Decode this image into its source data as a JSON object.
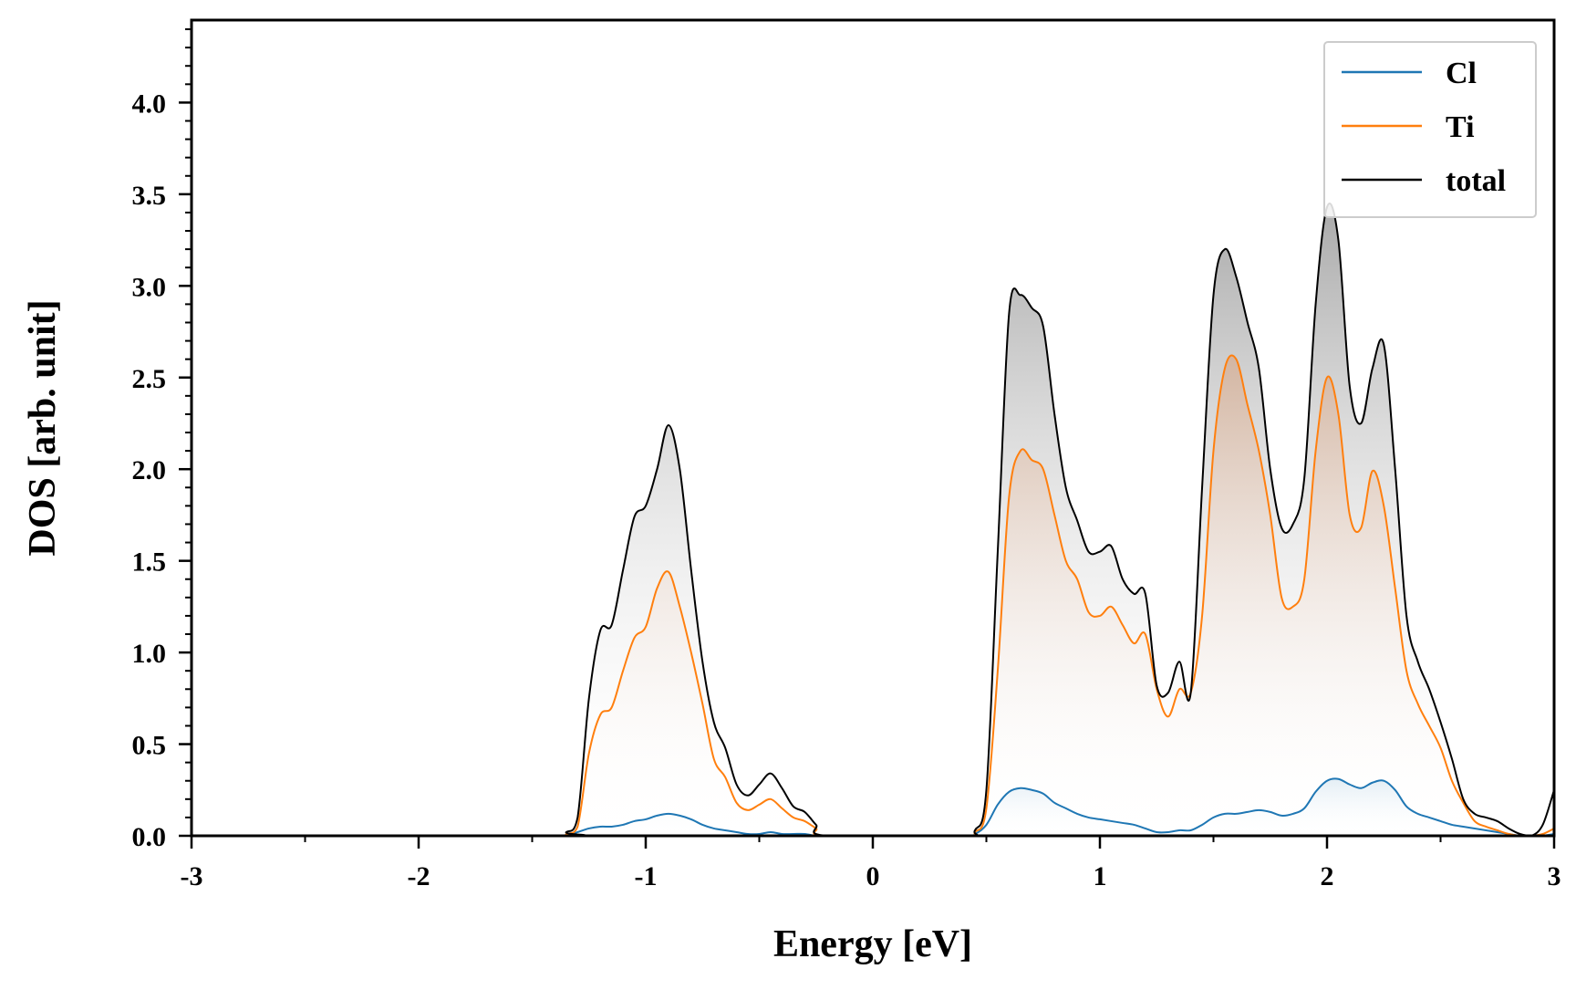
{
  "chart_data": {
    "type": "area",
    "title": "",
    "xlabel": "Energy [eV]",
    "ylabel": "DOS [arb. unit]",
    "xlim": [
      -3,
      3
    ],
    "ylim": [
      0,
      4.45
    ],
    "xticks": [
      -3,
      -2,
      -1,
      0,
      1,
      2,
      3
    ],
    "xtick_labels": [
      "-3",
      "-2",
      "-1",
      "0",
      "1",
      "2",
      "3"
    ],
    "yticks": [
      0,
      0.5,
      1.0,
      1.5,
      2.0,
      2.5,
      3.0,
      3.5,
      4.0
    ],
    "ytick_labels": [
      "0.0",
      "0.5",
      "1.0",
      "1.5",
      "2.0",
      "2.5",
      "3.0",
      "3.5",
      "4.0"
    ],
    "grid": false,
    "legend_position": "top-right",
    "x": [
      -3.0,
      -1.4,
      -1.35,
      -1.3,
      -1.25,
      -1.2,
      -1.15,
      -1.1,
      -1.05,
      -1.0,
      -0.95,
      -0.9,
      -0.85,
      -0.8,
      -0.75,
      -0.7,
      -0.65,
      -0.6,
      -0.55,
      -0.5,
      -0.45,
      -0.4,
      -0.35,
      -0.3,
      -0.25,
      -0.2,
      0.4,
      0.45,
      0.5,
      0.55,
      0.6,
      0.65,
      0.7,
      0.75,
      0.8,
      0.85,
      0.9,
      0.95,
      1.0,
      1.05,
      1.1,
      1.15,
      1.2,
      1.25,
      1.3,
      1.35,
      1.4,
      1.45,
      1.5,
      1.55,
      1.6,
      1.65,
      1.7,
      1.75,
      1.8,
      1.85,
      1.9,
      1.95,
      2.0,
      2.05,
      2.1,
      2.15,
      2.2,
      2.25,
      2.3,
      2.35,
      2.4,
      2.45,
      2.5,
      2.55,
      2.6,
      2.65,
      2.7,
      2.75,
      2.8,
      2.85,
      2.9,
      2.95,
      3.0
    ],
    "series": [
      {
        "name": "Cl",
        "color": "#1f77b4",
        "values": [
          0.0,
          0.0,
          0.0,
          0.02,
          0.04,
          0.05,
          0.05,
          0.06,
          0.08,
          0.09,
          0.11,
          0.12,
          0.11,
          0.09,
          0.06,
          0.04,
          0.03,
          0.02,
          0.01,
          0.01,
          0.02,
          0.01,
          0.01,
          0.01,
          0.0,
          0.0,
          0.0,
          0.01,
          0.06,
          0.17,
          0.24,
          0.26,
          0.25,
          0.23,
          0.18,
          0.15,
          0.12,
          0.1,
          0.09,
          0.08,
          0.07,
          0.06,
          0.04,
          0.02,
          0.02,
          0.03,
          0.03,
          0.06,
          0.1,
          0.12,
          0.12,
          0.13,
          0.14,
          0.13,
          0.11,
          0.12,
          0.15,
          0.24,
          0.3,
          0.31,
          0.28,
          0.26,
          0.29,
          0.3,
          0.25,
          0.16,
          0.12,
          0.1,
          0.08,
          0.06,
          0.05,
          0.04,
          0.03,
          0.02,
          0.01,
          0.0,
          0.0,
          0.0,
          0.01
        ]
      },
      {
        "name": "Ti",
        "color": "#ff7f0e",
        "values": [
          0.0,
          0.0,
          0.01,
          0.05,
          0.45,
          0.66,
          0.7,
          0.9,
          1.08,
          1.14,
          1.35,
          1.44,
          1.25,
          1.0,
          0.72,
          0.42,
          0.32,
          0.18,
          0.14,
          0.17,
          0.2,
          0.15,
          0.1,
          0.08,
          0.04,
          0.0,
          0.0,
          0.02,
          0.15,
          0.9,
          1.85,
          2.1,
          2.05,
          2.0,
          1.75,
          1.5,
          1.4,
          1.22,
          1.2,
          1.25,
          1.15,
          1.05,
          1.1,
          0.8,
          0.65,
          0.8,
          0.78,
          1.2,
          2.1,
          2.55,
          2.6,
          2.35,
          2.1,
          1.75,
          1.3,
          1.25,
          1.4,
          2.1,
          2.5,
          2.3,
          1.75,
          1.68,
          1.99,
          1.8,
          1.35,
          0.9,
          0.72,
          0.6,
          0.48,
          0.3,
          0.18,
          0.08,
          0.05,
          0.03,
          0.01,
          0.0,
          0.0,
          0.01,
          0.04
        ]
      },
      {
        "name": "total",
        "color": "#000000",
        "values": [
          0.0,
          0.0,
          0.02,
          0.1,
          0.75,
          1.12,
          1.15,
          1.45,
          1.74,
          1.8,
          2.0,
          2.24,
          2.0,
          1.45,
          0.95,
          0.62,
          0.48,
          0.28,
          0.22,
          0.28,
          0.34,
          0.26,
          0.16,
          0.13,
          0.06,
          0.0,
          0.0,
          0.03,
          0.25,
          1.55,
          2.85,
          2.95,
          2.88,
          2.78,
          2.3,
          1.9,
          1.72,
          1.55,
          1.55,
          1.58,
          1.4,
          1.32,
          1.32,
          0.82,
          0.78,
          0.95,
          0.78,
          1.9,
          2.95,
          3.2,
          3.05,
          2.8,
          2.55,
          2.0,
          1.68,
          1.7,
          1.95,
          2.9,
          3.43,
          3.25,
          2.45,
          2.25,
          2.55,
          2.68,
          2.0,
          1.2,
          0.95,
          0.8,
          0.62,
          0.42,
          0.2,
          0.12,
          0.1,
          0.08,
          0.04,
          0.01,
          0.0,
          0.06,
          0.25
        ]
      }
    ]
  }
}
